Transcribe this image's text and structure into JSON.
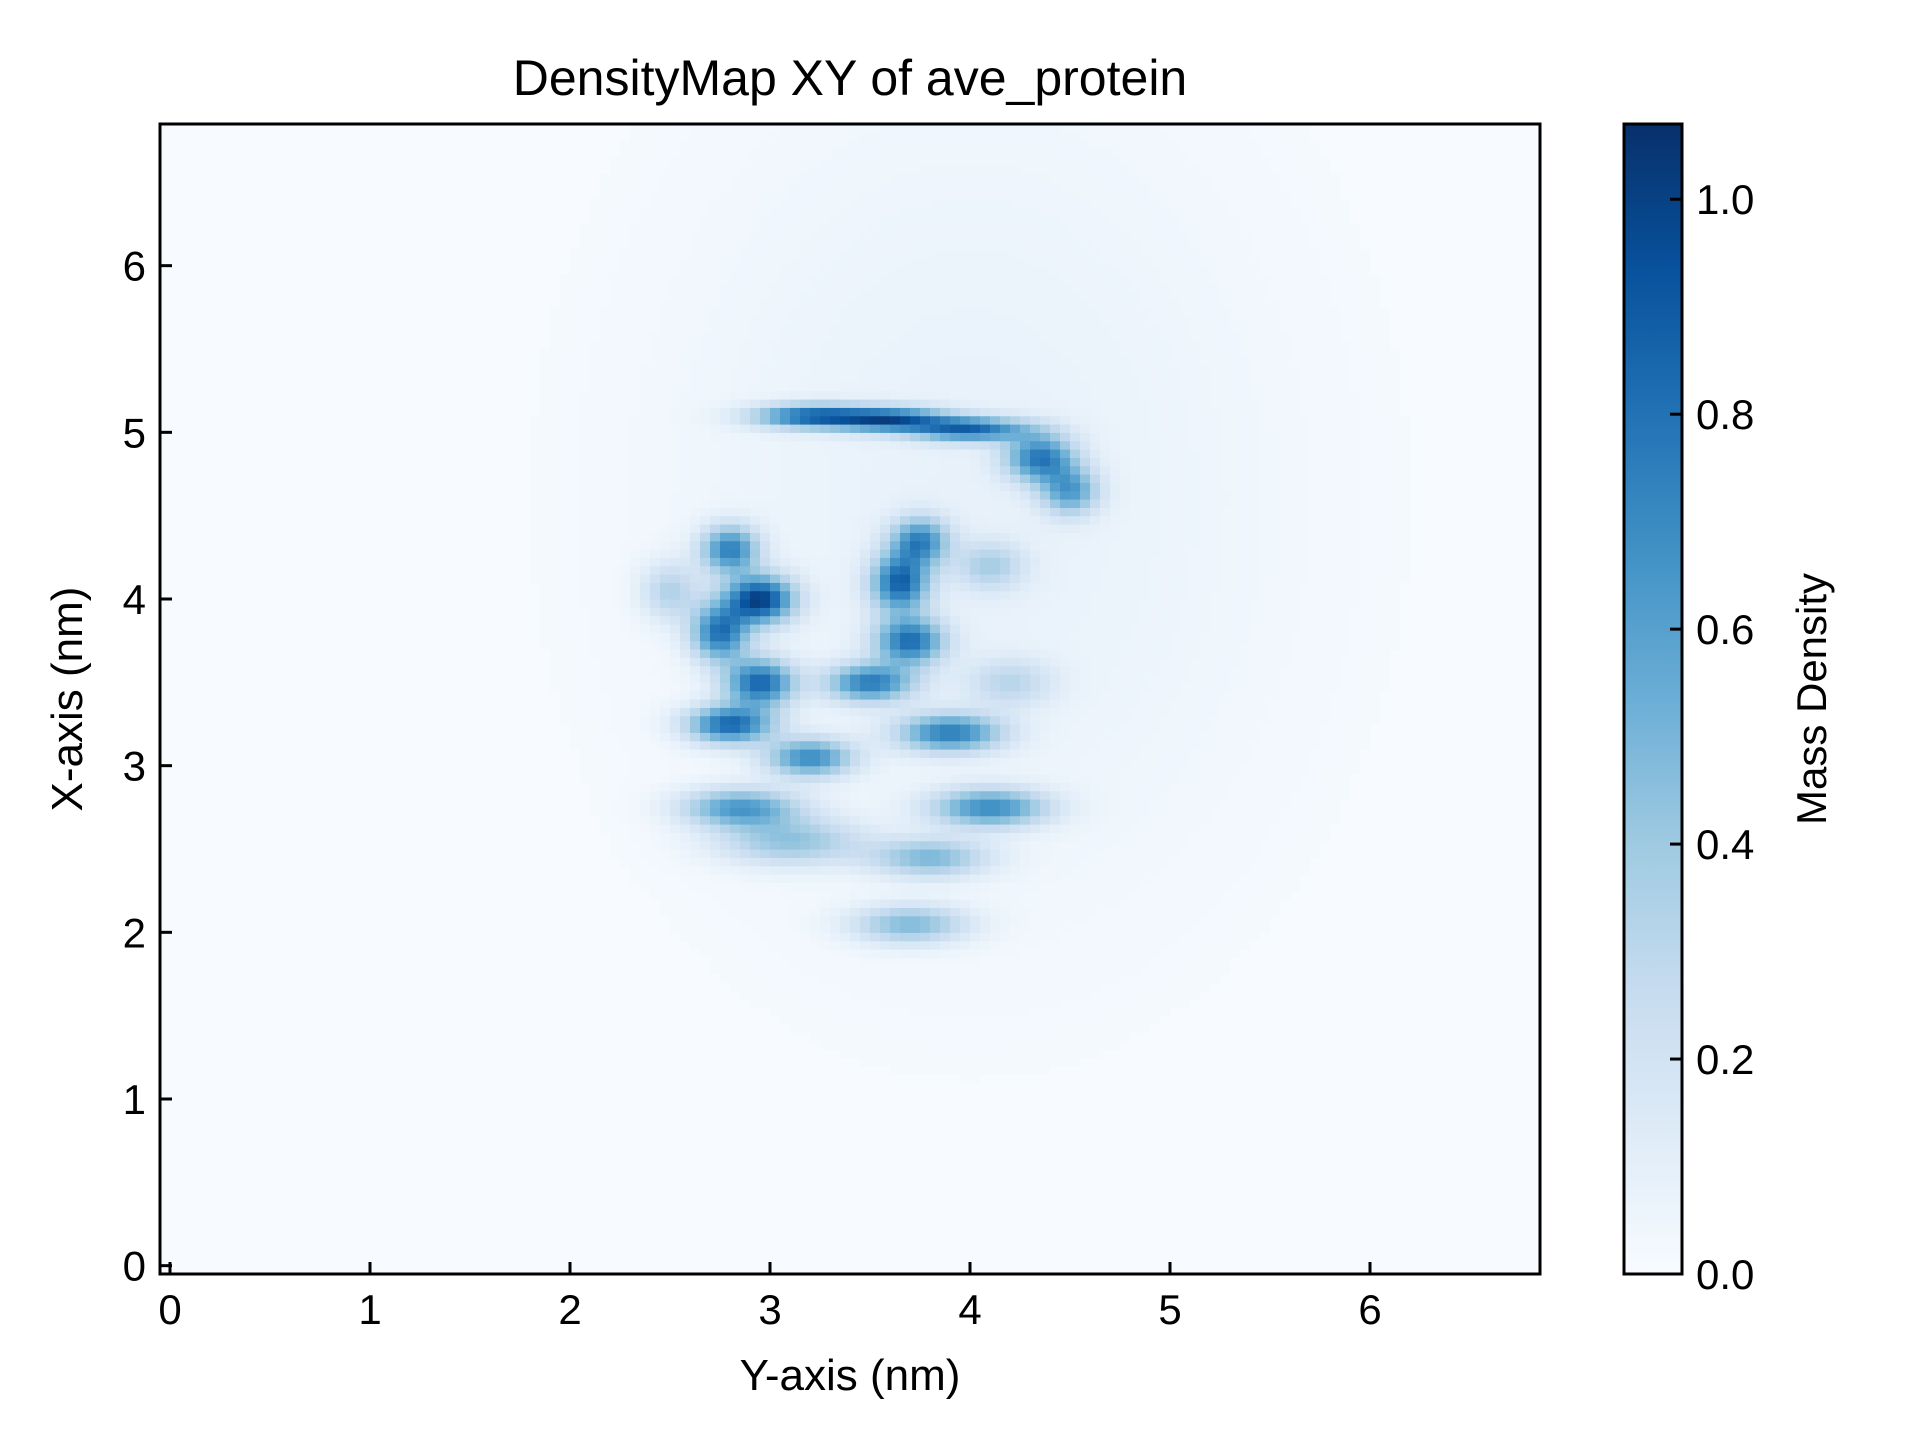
{
  "chart_data": {
    "type": "heatmap",
    "title": "DensityMap XY of ave_protein",
    "xlabel": "Y-axis (nm)",
    "ylabel": "X-axis (nm)",
    "xlim": [
      -0.05,
      6.85
    ],
    "ylim": [
      -0.05,
      6.85
    ],
    "xticks": [
      0,
      1,
      2,
      3,
      4,
      5,
      6
    ],
    "yticks": [
      0,
      1,
      2,
      3,
      4,
      5,
      6
    ],
    "colormap": "Blues",
    "colors": {
      "cmap": [
        "#f7fbff",
        "#deebf7",
        "#c6dbef",
        "#9ecae1",
        "#6baed6",
        "#4292c6",
        "#2171b5",
        "#08519c",
        "#08306b"
      ],
      "frame": "#000000",
      "background": "#ffffff"
    },
    "colorbar": {
      "label": "Mass Density",
      "range": [
        0.0,
        1.07
      ],
      "ticks": [
        0.0,
        0.2,
        0.4,
        0.6,
        0.8,
        1.0
      ],
      "tick_labels": [
        "0.0",
        "0.2",
        "0.4",
        "0.6",
        "0.8",
        "1.0"
      ]
    },
    "grid": false,
    "density_blobs": [
      {
        "x": 4.0,
        "y": 4.6,
        "sx": 1.2,
        "sy": 1.9,
        "v": 0.08
      },
      {
        "x": 3.2,
        "y": 5.1,
        "sx": 0.2,
        "sy": 0.05,
        "v": 0.75
      },
      {
        "x": 3.6,
        "y": 5.08,
        "sx": 0.2,
        "sy": 0.05,
        "v": 0.8
      },
      {
        "x": 4.0,
        "y": 5.02,
        "sx": 0.2,
        "sy": 0.05,
        "v": 0.75
      },
      {
        "x": 4.35,
        "y": 4.85,
        "sx": 0.12,
        "sy": 0.1,
        "v": 0.7
      },
      {
        "x": 4.5,
        "y": 4.65,
        "sx": 0.1,
        "sy": 0.1,
        "v": 0.55
      },
      {
        "x": 2.8,
        "y": 4.3,
        "sx": 0.1,
        "sy": 0.1,
        "v": 0.7
      },
      {
        "x": 2.95,
        "y": 4.0,
        "sx": 0.12,
        "sy": 0.1,
        "v": 0.95
      },
      {
        "x": 2.75,
        "y": 3.8,
        "sx": 0.1,
        "sy": 0.12,
        "v": 0.75
      },
      {
        "x": 2.95,
        "y": 3.5,
        "sx": 0.12,
        "sy": 0.1,
        "v": 0.8
      },
      {
        "x": 2.8,
        "y": 3.25,
        "sx": 0.15,
        "sy": 0.08,
        "v": 0.8
      },
      {
        "x": 3.2,
        "y": 3.05,
        "sx": 0.15,
        "sy": 0.08,
        "v": 0.65
      },
      {
        "x": 2.85,
        "y": 2.75,
        "sx": 0.2,
        "sy": 0.08,
        "v": 0.6
      },
      {
        "x": 3.1,
        "y": 2.55,
        "sx": 0.25,
        "sy": 0.1,
        "v": 0.4
      },
      {
        "x": 3.75,
        "y": 4.35,
        "sx": 0.1,
        "sy": 0.1,
        "v": 0.65
      },
      {
        "x": 3.65,
        "y": 4.1,
        "sx": 0.1,
        "sy": 0.12,
        "v": 0.8
      },
      {
        "x": 3.7,
        "y": 3.75,
        "sx": 0.12,
        "sy": 0.1,
        "v": 0.75
      },
      {
        "x": 3.5,
        "y": 3.5,
        "sx": 0.15,
        "sy": 0.08,
        "v": 0.7
      },
      {
        "x": 3.9,
        "y": 3.2,
        "sx": 0.18,
        "sy": 0.08,
        "v": 0.7
      },
      {
        "x": 4.1,
        "y": 2.75,
        "sx": 0.2,
        "sy": 0.08,
        "v": 0.65
      },
      {
        "x": 3.8,
        "y": 2.45,
        "sx": 0.2,
        "sy": 0.08,
        "v": 0.45
      },
      {
        "x": 3.7,
        "y": 2.05,
        "sx": 0.2,
        "sy": 0.08,
        "v": 0.45
      },
      {
        "x": 2.5,
        "y": 4.05,
        "sx": 0.1,
        "sy": 0.12,
        "v": 0.3
      },
      {
        "x": 4.1,
        "y": 4.2,
        "sx": 0.12,
        "sy": 0.1,
        "v": 0.3
      },
      {
        "x": 4.2,
        "y": 3.5,
        "sx": 0.15,
        "sy": 0.1,
        "v": 0.25
      }
    ]
  }
}
